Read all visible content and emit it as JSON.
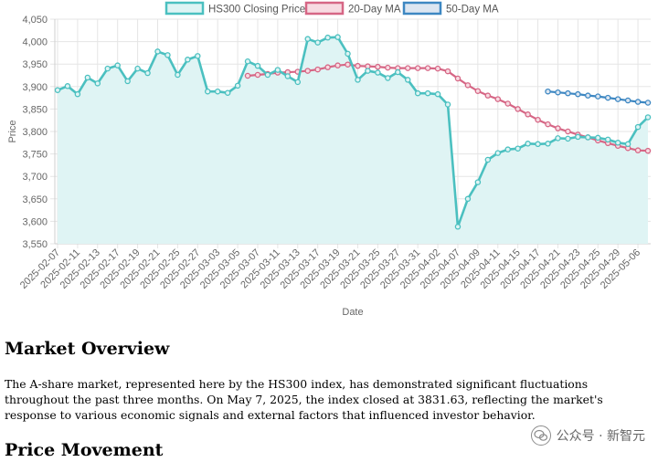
{
  "chart_data": {
    "type": "line",
    "xlabel": "Date",
    "ylabel": "Price",
    "ylim": [
      3550,
      4050
    ],
    "yticks": [
      3550,
      3600,
      3650,
      3700,
      3750,
      3800,
      3850,
      3900,
      3950,
      4000,
      4050
    ],
    "ytick_labels": [
      "3,550",
      "3,600",
      "3,650",
      "3,700",
      "3,750",
      "3,800",
      "3,850",
      "3,900",
      "3,950",
      "4,000",
      "4,050"
    ],
    "dates": [
      "2025-02-07",
      "2025-02-10",
      "2025-02-11",
      "2025-02-12",
      "2025-02-13",
      "2025-02-14",
      "2025-02-17",
      "2025-02-18",
      "2025-02-19",
      "2025-02-20",
      "2025-02-21",
      "2025-02-24",
      "2025-02-25",
      "2025-02-26",
      "2025-02-27",
      "2025-02-28",
      "2025-03-03",
      "2025-03-04",
      "2025-03-05",
      "2025-03-06",
      "2025-03-07",
      "2025-03-10",
      "2025-03-11",
      "2025-03-12",
      "2025-03-13",
      "2025-03-14",
      "2025-03-17",
      "2025-03-18",
      "2025-03-19",
      "2025-03-20",
      "2025-03-21",
      "2025-03-24",
      "2025-03-25",
      "2025-03-26",
      "2025-03-27",
      "2025-03-28",
      "2025-03-31",
      "2025-04-01",
      "2025-04-02",
      "2025-04-03",
      "2025-04-07",
      "2025-04-08",
      "2025-04-09",
      "2025-04-10",
      "2025-04-11",
      "2025-04-14",
      "2025-04-15",
      "2025-04-16",
      "2025-04-17",
      "2025-04-18",
      "2025-04-21",
      "2025-04-22",
      "2025-04-23",
      "2025-04-24",
      "2025-04-25",
      "2025-04-28",
      "2025-04-29",
      "2025-04-30",
      "2025-05-06",
      "2025-05-07"
    ],
    "tick_labels": [
      "2025-02-07",
      "2025-02-11",
      "2025-02-13",
      "2025-02-17",
      "2025-02-19",
      "2025-02-21",
      "2025-02-25",
      "2025-02-27",
      "2025-03-03",
      "2025-03-05",
      "2025-03-07",
      "2025-03-11",
      "2025-03-13",
      "2025-03-17",
      "2025-03-19",
      "2025-03-21",
      "2025-03-25",
      "2025-03-27",
      "2025-03-31",
      "2025-04-02",
      "2025-04-07",
      "2025-04-09",
      "2025-04-11",
      "2025-04-15",
      "2025-04-17",
      "2025-04-21",
      "2025-04-23",
      "2025-04-25",
      "2025-04-29",
      "2025-05-06"
    ],
    "series": [
      {
        "name": "HS300 Closing Price",
        "color": "#4bc0c0",
        "fill": "#dff4f4",
        "values": [
          3892,
          3901,
          3883,
          3920,
          3907,
          3940,
          3947,
          3912,
          3940,
          3930,
          3978,
          3970,
          3926,
          3960,
          3968,
          3889,
          3889,
          3886,
          3902,
          3956,
          3946,
          3926,
          3937,
          3923,
          3910,
          4006,
          3998,
          4009,
          4010,
          3973,
          3915,
          3935,
          3931,
          3919,
          3932,
          3915,
          3885,
          3885,
          3883,
          3860,
          3588,
          3650,
          3687,
          3737,
          3752,
          3760,
          3762,
          3773,
          3772,
          3773,
          3785,
          3784,
          3788,
          3787,
          3786,
          3782,
          3775,
          3772,
          3810,
          3831.63
        ]
      },
      {
        "name": "20-Day MA",
        "color": "#d66685",
        "fill": "#f7dbe2",
        "values": [
          null,
          null,
          null,
          null,
          null,
          null,
          null,
          null,
          null,
          null,
          null,
          null,
          null,
          null,
          null,
          null,
          null,
          null,
          null,
          3924,
          3926,
          3928,
          3931,
          3932,
          3933,
          3935,
          3938,
          3943,
          3947,
          3949,
          3946,
          3945,
          3944,
          3942,
          3941,
          3941,
          3941,
          3941,
          3940,
          3934,
          3918,
          3903,
          3890,
          3880,
          3872,
          3862,
          3850,
          3838,
          3826,
          3816,
          3807,
          3800,
          3793,
          3787,
          3780,
          3774,
          3768,
          3763,
          3758,
          3757
        ]
      },
      {
        "name": "50-Day MA",
        "color": "#3d87c2",
        "fill": "#dce6f1",
        "values": [
          null,
          null,
          null,
          null,
          null,
          null,
          null,
          null,
          null,
          null,
          null,
          null,
          null,
          null,
          null,
          null,
          null,
          null,
          null,
          null,
          null,
          null,
          null,
          null,
          null,
          null,
          null,
          null,
          null,
          null,
          null,
          null,
          null,
          null,
          null,
          null,
          null,
          null,
          null,
          null,
          null,
          null,
          null,
          null,
          null,
          null,
          null,
          null,
          null,
          3889,
          3887,
          3885,
          3883,
          3880,
          3878,
          3875,
          3872,
          3869,
          3866,
          3864
        ]
      }
    ],
    "legend_position": "top"
  },
  "article": {
    "heading_overview": "Market Overview",
    "paragraph": "The A-share market, represented here by the HS300 index, has demonstrated significant fluctuations throughout the past three months. On May 7, 2025, the index closed at 3831.63, reflecting the market's response to various economic signals and external factors that influenced investor behavior.",
    "heading_price": "Price Movement"
  },
  "watermark": {
    "text": "公众号 · 新智元",
    "icon": "wechat-logo-icon"
  }
}
